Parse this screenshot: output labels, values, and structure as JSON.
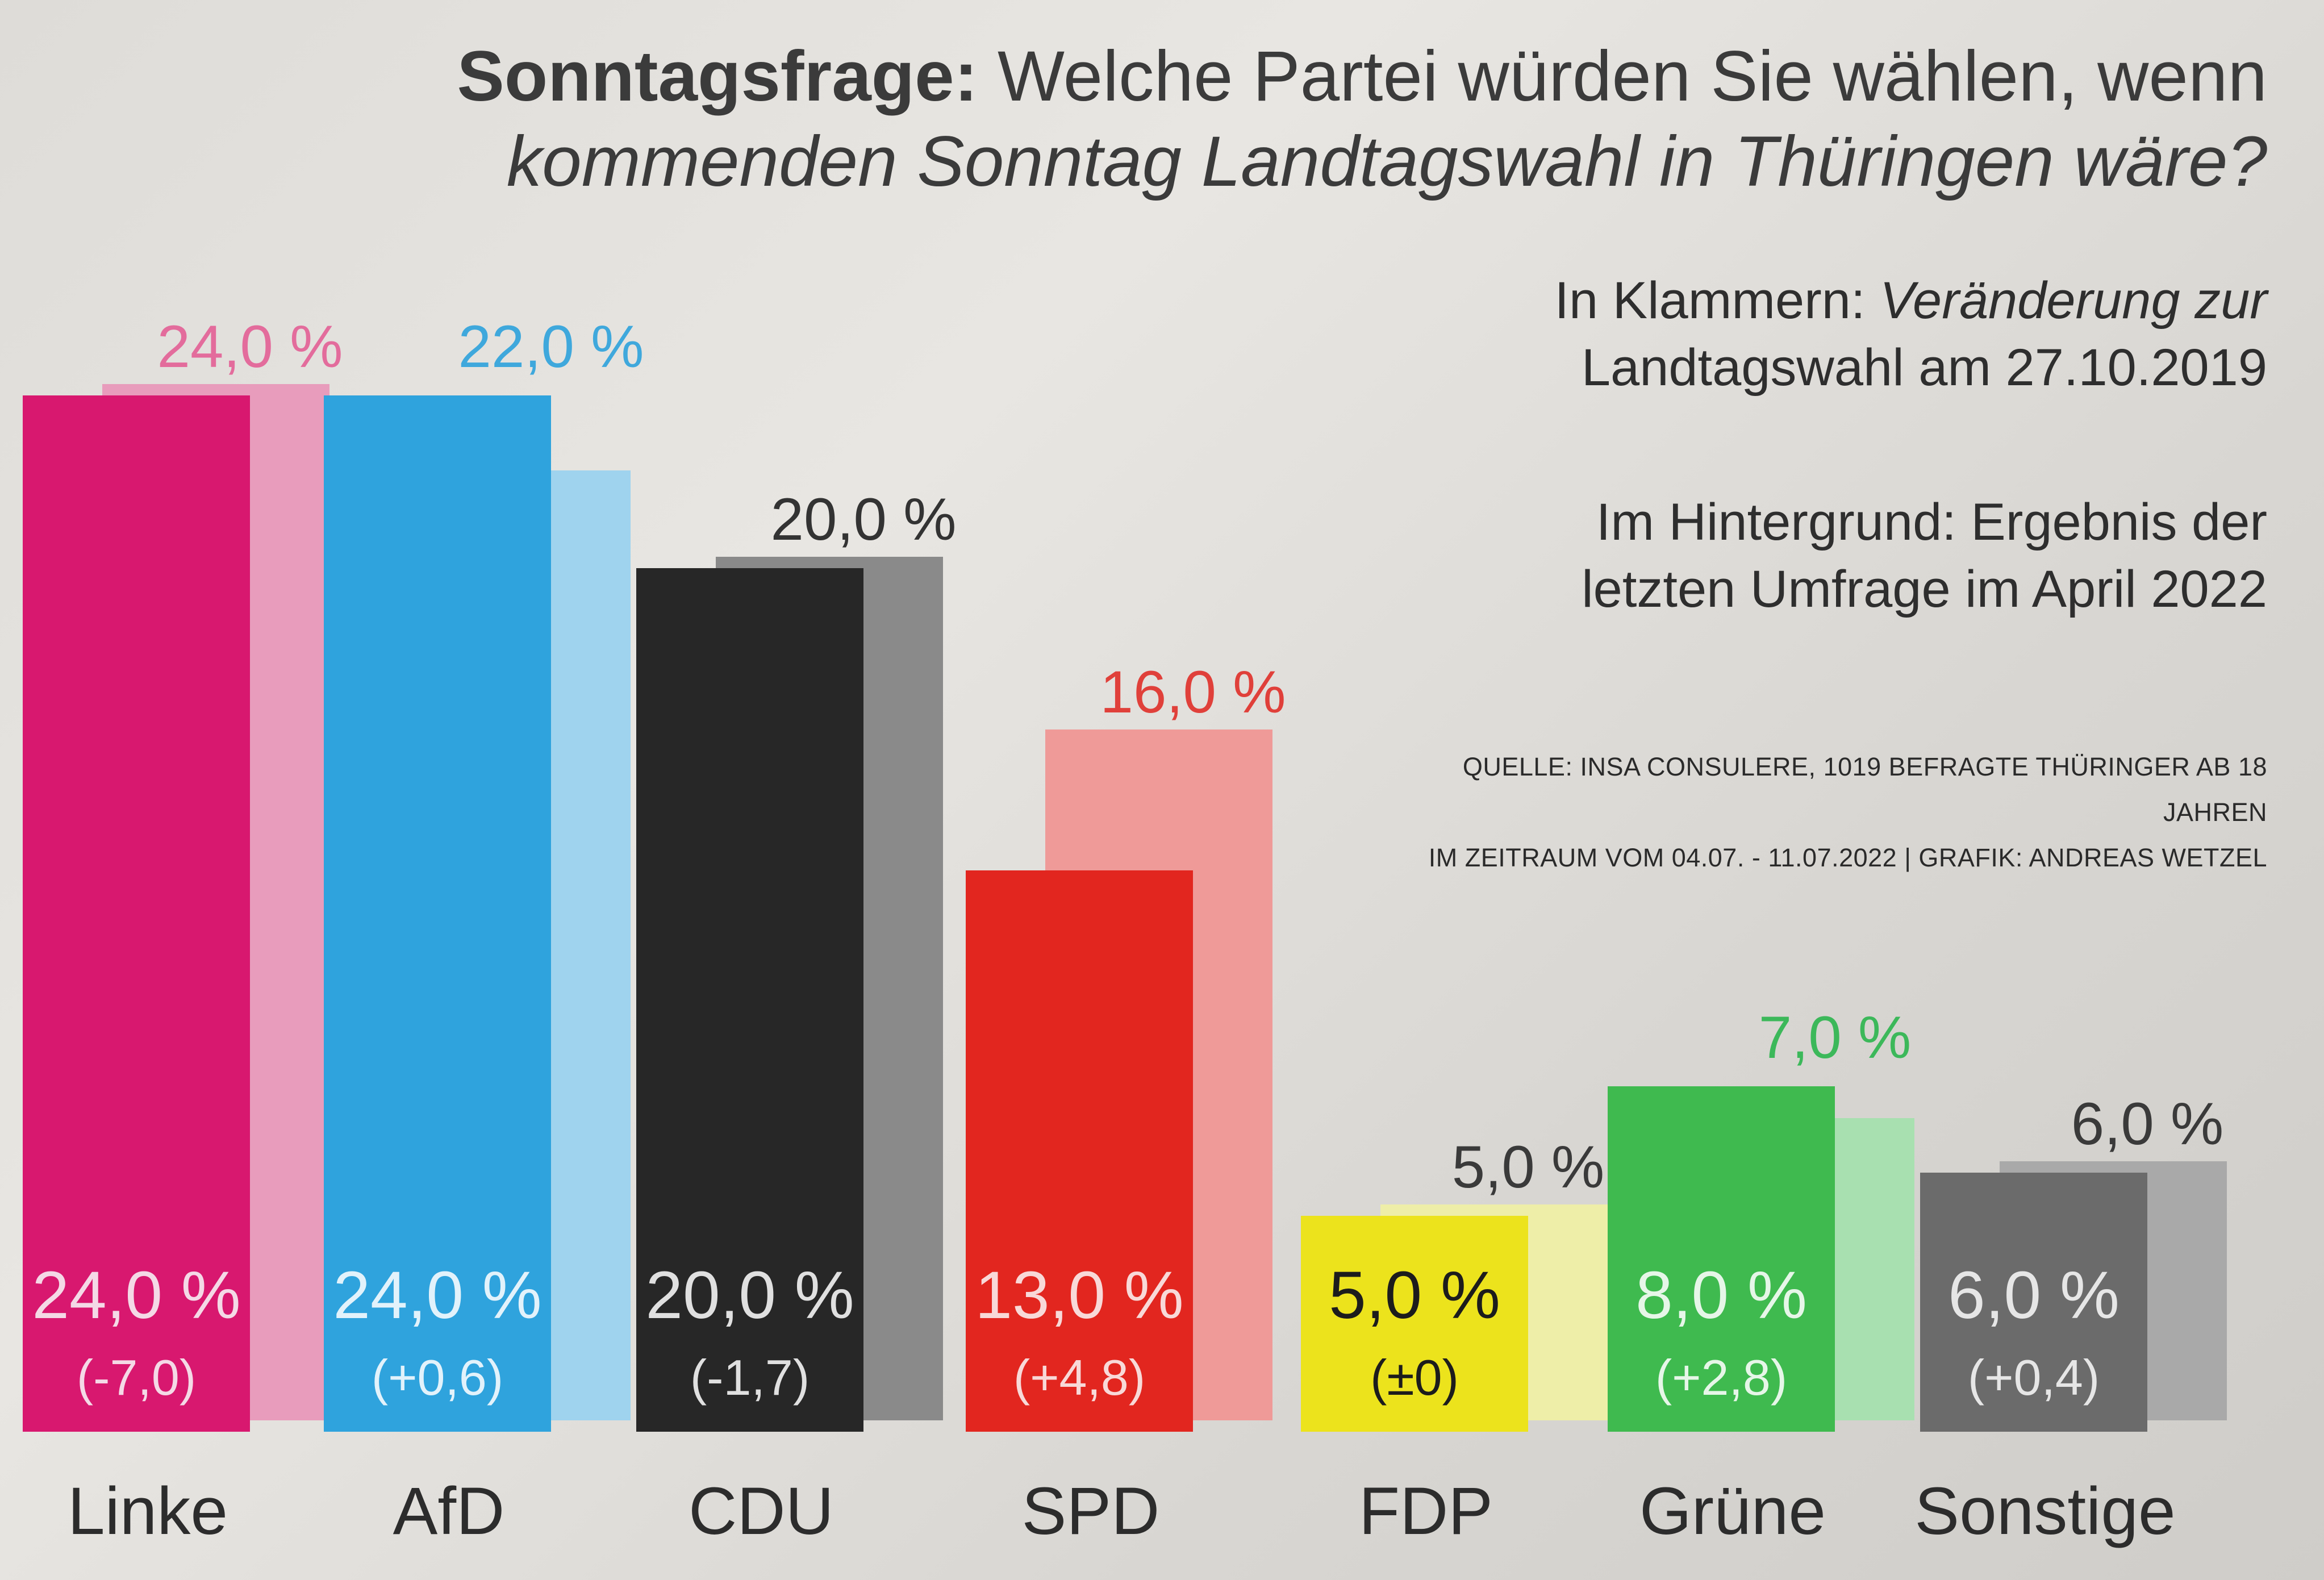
{
  "title": {
    "lead": "Sonntagsfrage:",
    "rest": " Welche Partei würden Sie wählen, wenn",
    "line2": "kommenden Sonntag Landtagswahl in Thüringen wäre?"
  },
  "notes": {
    "klammern_lead": "In Klammern:",
    "klammern_rest": "Veränderung zur",
    "klammern_line2": "Landtagswahl am 27.10.2019",
    "hintergrund_lead": "Im Hintergrund:",
    "hintergrund_rest": "Ergebnis der",
    "hintergrund_line2": "letzten Umfrage im April 2022"
  },
  "source": {
    "line1": "QUELLE: INSA CONSULERE, 1019 BEFRAGTE THÜRINGER AB 18 JAHREN",
    "line2": "IM ZEITRAUM VOM 04.07. - 11.07.2022 | GRAFIK: ANDREAS WETZEL"
  },
  "chart_data": {
    "type": "bar",
    "categories": [
      "Linke",
      "AfD",
      "CDU",
      "SPD",
      "FDP",
      "Grüne",
      "Sonstige"
    ],
    "series": [
      {
        "values": [
          24.0,
          24.0,
          20.0,
          13.0,
          5.0,
          8.0,
          6.0
        ],
        "labels": [
          "24,0 %",
          "24,0 %",
          "20,0 %",
          "13,0 %",
          "5,0 %",
          "8,0 %",
          "6,0 %"
        ],
        "changes": [
          "(-7,0)",
          "(+0,6)",
          "(-1,7)",
          "(+4,8)",
          "(±0)",
          "(+2,8)",
          "(+0,4)"
        ]
      },
      {
        "values": [
          24.0,
          22.0,
          20.0,
          16.0,
          5.0,
          7.0,
          6.0
        ],
        "labels": [
          "24,0 %",
          "22,0 %",
          "20,0 %",
          "16,0 %",
          "5,0 %",
          "7,0 %",
          "6,0 %"
        ]
      }
    ],
    "colors": [
      "#d8186f",
      "#2fa3dd",
      "#272727",
      "#e2261f",
      "#ece31c",
      "#3fba4f",
      "#6b6b6b"
    ],
    "background_colors": [
      "#e89cbc",
      "#9fd3ee",
      "#8a8a8a",
      "#ef9a98",
      "#eeeea8",
      "#a8e0b0",
      "#a9a9a9"
    ],
    "value_label_colors": [
      "#e36c9c",
      "#3fa8dc",
      "#333333",
      "#e0403a",
      "#3a3a3a",
      "#3cb85a",
      "#3a3a3a"
    ],
    "inner_text_colors": [
      "#f4d9e6",
      "#e2f2fb",
      "#e0e0e0",
      "#f8d9d8",
      "#1c1c1c",
      "#e6f6e8",
      "#e6e6e6"
    ],
    "ylim": [
      0,
      25
    ],
    "xlabel": "",
    "ylabel": "",
    "grid": false,
    "legend": "none"
  }
}
